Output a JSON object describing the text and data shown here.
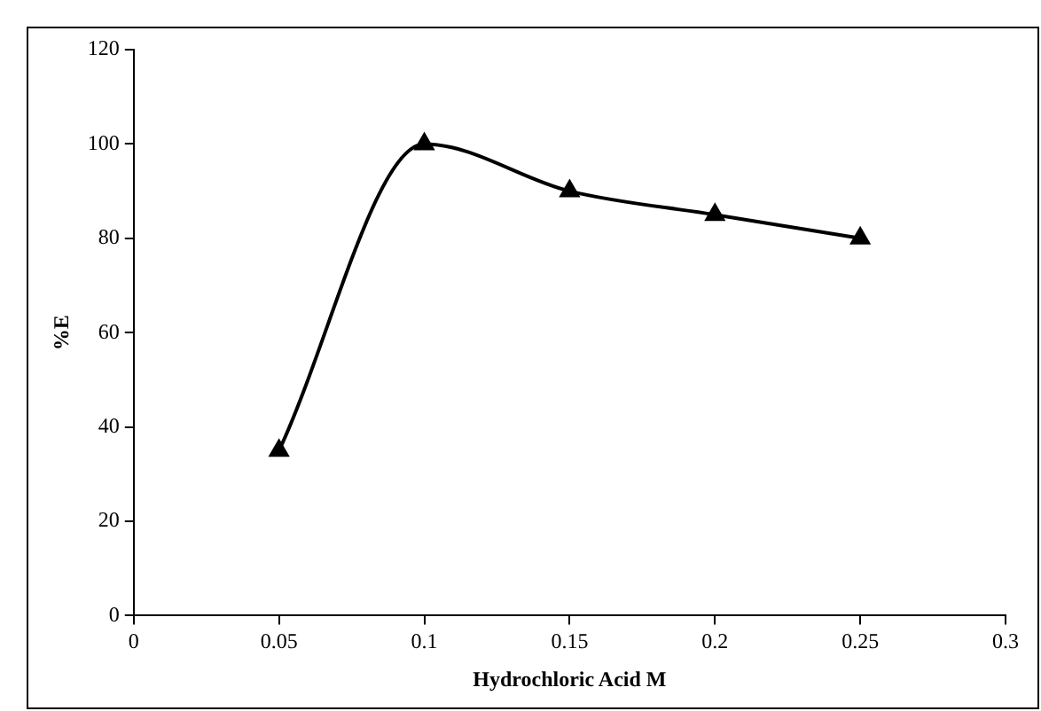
{
  "chart_data": {
    "type": "line",
    "xlabel": "Hydrochloric Acid M",
    "ylabel": "%E",
    "x": [
      0.05,
      0.1,
      0.15,
      0.2,
      0.25
    ],
    "series": [
      {
        "color": "#000000",
        "values": [
          35,
          100,
          90,
          85,
          80
        ]
      }
    ],
    "xlim": [
      0,
      0.3
    ],
    "xticks": [
      0,
      0.05,
      0.1,
      0.15,
      0.2,
      0.25,
      0.3
    ],
    "ylim": [
      0,
      120
    ],
    "yticks": [
      0,
      20,
      40,
      60,
      80,
      100,
      120
    ],
    "grid": false,
    "legend": false,
    "marker": "triangle",
    "line_style": "solid"
  }
}
